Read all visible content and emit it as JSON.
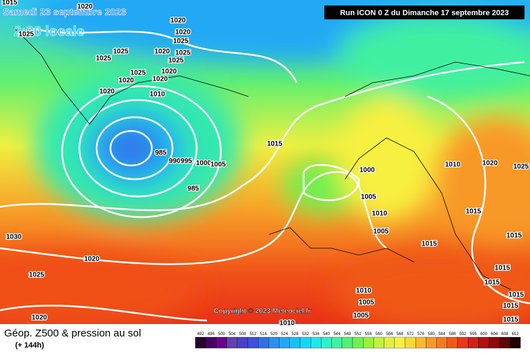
{
  "header": {
    "date": "Samedi 23 septembre 2023",
    "time": "2:00 locale",
    "run": "Run ICON 0 Z du Dimanche 17 septembre 2023"
  },
  "copyright": "Copyright © 2023 Meteociel.fr",
  "footer": {
    "title": "Géop. Z500 & pression au sol",
    "range": "(+ 144h)"
  },
  "scale": {
    "values": [
      492,
      496,
      500,
      504,
      508,
      512,
      516,
      520,
      524,
      528,
      532,
      536,
      540,
      544,
      548,
      552,
      556,
      560,
      564,
      568,
      572,
      576,
      580,
      584,
      588,
      592,
      596,
      600,
      604,
      608,
      612
    ],
    "colors": [
      "#2a0030",
      "#4a0060",
      "#6a0090",
      "#6040b0",
      "#4a40c8",
      "#3c50dc",
      "#3070e8",
      "#2890f0",
      "#20a8f4",
      "#18c0f8",
      "#10d8f8",
      "#20e8e8",
      "#30f0c8",
      "#40f0a0",
      "#50f078",
      "#70f050",
      "#98f040",
      "#c0f040",
      "#e0f040",
      "#f8f040",
      "#f8d838",
      "#f8b830",
      "#f89828",
      "#f87820",
      "#f05818",
      "#e83818",
      "#d02018",
      "#b01010",
      "#900808",
      "#600404",
      "#200000"
    ]
  },
  "isobar_labels": [
    1015,
    1020,
    1020,
    1025,
    1020,
    1025,
    1025,
    1020,
    1025,
    1025,
    1025,
    1020,
    1025,
    1020,
    1020,
    1020,
    1010,
    985,
    990,
    995,
    1000,
    1005,
    985,
    1015,
    1000,
    1005,
    1010,
    1005,
    1015,
    1010,
    1020,
    1025,
    1015,
    1030,
    1020,
    1025,
    1015,
    1015,
    1015,
    1015,
    1015,
    1010,
    1005,
    1005,
    1010,
    1015,
    1020
  ]
}
